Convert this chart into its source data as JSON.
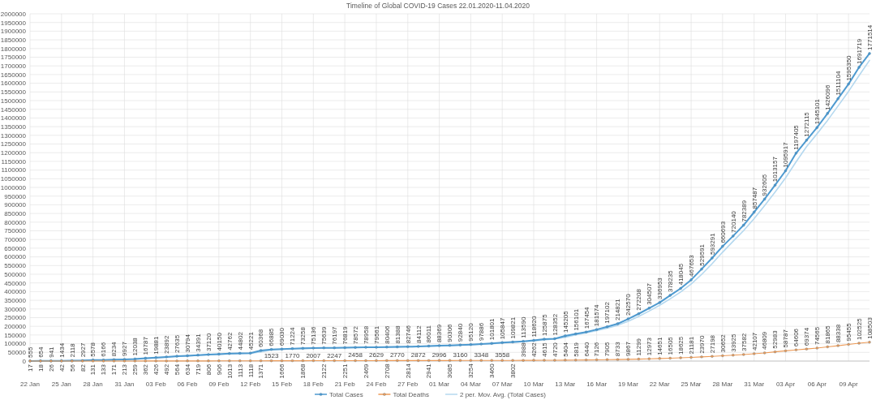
{
  "chart_data": {
    "type": "line",
    "title": "Timeline of Global COVID-19 Cases 22.01.2020-11.04.2020",
    "x": [
      "--01-22",
      "--01-23",
      "--01-24",
      "--01-25",
      "--01-26",
      "--01-27",
      "--01-28",
      "--01-29",
      "--01-30",
      "--01-31",
      "--02-01",
      "--02-02",
      "--02-03",
      "--02-04",
      "--02-05",
      "--02-06",
      "--02-07",
      "--02-08",
      "--02-09",
      "--02-10",
      "--02-11",
      "--02-12",
      "--02-13",
      "--02-14",
      "--02-15",
      "--02-16",
      "--02-17",
      "--02-18",
      "--02-19",
      "--02-20",
      "--02-21",
      "--02-22",
      "--02-23",
      "--02-24",
      "--02-25",
      "--02-26",
      "--02-27",
      "--02-28",
      "--02-29",
      "--03-01",
      "--03-02",
      "--03-03",
      "--03-04",
      "--03-05",
      "--03-06",
      "--03-07",
      "--03-08",
      "--03-09",
      "--03-10",
      "--03-11",
      "--03-12",
      "--03-13",
      "--03-14",
      "--03-15",
      "--03-16",
      "--03-17",
      "--03-18",
      "--03-19",
      "--03-20",
      "--03-21",
      "--03-22",
      "--03-23",
      "--03-24",
      "--03-25",
      "--03-26",
      "--03-27",
      "--03-28",
      "--03-29",
      "--03-30",
      "--03-31",
      "--04-01",
      "--04-02",
      "--04-03",
      "--04-04",
      "--04-05",
      "--04-06",
      "--04-07",
      "--04-08",
      "--04-09",
      "--04-10",
      "--04-11"
    ],
    "series": [
      {
        "name": "Total Cases",
        "color": "#4e9ad0",
        "values": [
          555,
          654,
          941,
          1434,
          2118,
          2927,
          5578,
          6166,
          8234,
          9927,
          12038,
          16787,
          19881,
          23892,
          27635,
          30794,
          34391,
          37120,
          40150,
          42762,
          44802,
          45221,
          60368,
          66885,
          69030,
          71224,
          73258,
          75136,
          75639,
          76197,
          76819,
          78572,
          78958,
          79561,
          80406,
          81388,
          82746,
          84112,
          86011,
          88369,
          90306,
          92840,
          95120,
          97886,
          101801,
          105847,
          109821,
          113590,
          118620,
          125875,
          128352,
          145205,
          156101,
          167454,
          181574,
          197102,
          214821,
          242570,
          272208,
          304507,
          336953,
          378235,
          418045,
          467653,
          529591,
          593291,
          660693,
          720140,
          782389,
          857487,
          932605,
          1013157,
          1095917,
          1197405,
          1272115,
          1345101,
          1426096,
          1511104,
          1595350,
          1691719,
          1771514
        ]
      },
      {
        "name": "Total Deaths",
        "color": "#ee9b57",
        "values": [
          17,
          18,
          26,
          42,
          56,
          82,
          131,
          133,
          171,
          213,
          259,
          362,
          426,
          492,
          564,
          634,
          719,
          806,
          906,
          1013,
          1113,
          1118,
          1371,
          1523,
          1666,
          1770,
          1868,
          2007,
          2122,
          2247,
          2251,
          2458,
          2469,
          2629,
          2708,
          2770,
          2814,
          2872,
          2941,
          2996,
          3085,
          3160,
          3254,
          3348,
          3460,
          3558,
          3802,
          3988,
          4262,
          4615,
          4720,
          5404,
          5819,
          6440,
          7126,
          7905,
          8733,
          9867,
          11299,
          12973,
          14651,
          16505,
          18625,
          21181,
          23970,
          27198,
          30652,
          33925,
          37582,
          42107,
          46809,
          52983,
          58787,
          64606,
          69374,
          74565,
          81865,
          88338,
          95455,
          102525,
          108503
        ]
      },
      {
        "name": "2 per. Mov. Avg. (Total Cases)",
        "color": "#b4d8ef",
        "marker": "none",
        "data_labels": false,
        "values": [
          null,
          1000,
          1000,
          1000,
          2000,
          3000,
          4000,
          6000,
          7000,
          9000,
          11000,
          14000,
          18000,
          22000,
          26000,
          29000,
          33000,
          36000,
          39000,
          41000,
          44000,
          45000,
          53000,
          64000,
          68000,
          70000,
          72000,
          74000,
          75000,
          76000,
          77000,
          78000,
          79000,
          79000,
          80000,
          81000,
          82000,
          83000,
          85000,
          87000,
          89000,
          92000,
          94000,
          97000,
          100000,
          104000,
          108000,
          112000,
          116000,
          122000,
          127000,
          137000,
          151000,
          162000,
          175000,
          189000,
          206000,
          229000,
          257000,
          288000,
          321000,
          358000,
          398000,
          443000,
          499000,
          561000,
          627000,
          690000,
          751000,
          820000,
          895000,
          973000,
          1055000,
          1147000,
          1235000,
          1309000,
          1386000,
          1469000,
          1553000,
          1644000,
          1732000
        ]
      }
    ],
    "xlim": [
      "--01-22",
      "--04-11"
    ],
    "xticks": [
      {
        "value": "--01-22",
        "label": "22 Jan"
      },
      {
        "value": "--01-25",
        "label": "25 Jan"
      },
      {
        "value": "--01-28",
        "label": "28 Jan"
      },
      {
        "value": "--01-31",
        "label": "31 Jan"
      },
      {
        "value": "--02-03",
        "label": "03 Feb"
      },
      {
        "value": "--02-06",
        "label": "06 Feb"
      },
      {
        "value": "--02-09",
        "label": "09 Feb"
      },
      {
        "value": "--02-12",
        "label": "12 Feb"
      },
      {
        "value": "--02-15",
        "label": "15 Feb"
      },
      {
        "value": "--02-18",
        "label": "18 Feb"
      },
      {
        "value": "--02-21",
        "label": "21 Feb"
      },
      {
        "value": "--02-24",
        "label": "24 Feb"
      },
      {
        "value": "--02-27",
        "label": "27 Feb"
      },
      {
        "value": "--03-01",
        "label": "01 Mar"
      },
      {
        "value": "--03-04",
        "label": "04 Mar"
      },
      {
        "value": "--03-07",
        "label": "07 Mar"
      },
      {
        "value": "--03-10",
        "label": "10 Mar"
      },
      {
        "value": "--03-13",
        "label": "13 Mar"
      },
      {
        "value": "--03-16",
        "label": "16 Mar"
      },
      {
        "value": "--03-19",
        "label": "19 Mar"
      },
      {
        "value": "--03-22",
        "label": "22 Mar"
      },
      {
        "value": "--03-25",
        "label": "25 Mar"
      },
      {
        "value": "--03-28",
        "label": "28 Mar"
      },
      {
        "value": "--03-31",
        "label": "31 Mar"
      },
      {
        "value": "--04-03",
        "label": "03 Apr"
      },
      {
        "value": "--04-06",
        "label": "06 Apr"
      },
      {
        "value": "--04-09",
        "label": "09 Apr"
      }
    ],
    "ylim": [
      0,
      2000000
    ],
    "yticks": [
      0,
      50000,
      100000,
      150000,
      200000,
      250000,
      300000,
      350000,
      400000,
      450000,
      500000,
      550000,
      600000,
      650000,
      700000,
      750000,
      800000,
      850000,
      900000,
      950000,
      1000000,
      1050000,
      1100000,
      1150000,
      1200000,
      1250000,
      1300000,
      1350000,
      1400000,
      1450000,
      1500000,
      1550000,
      1600000,
      1650000,
      1700000,
      1750000,
      1800000,
      1850000,
      1900000,
      1950000,
      2000000
    ],
    "grid": true,
    "legend": "bottom",
    "marker": "circle",
    "line_style": "solid",
    "data_labels": true
  }
}
